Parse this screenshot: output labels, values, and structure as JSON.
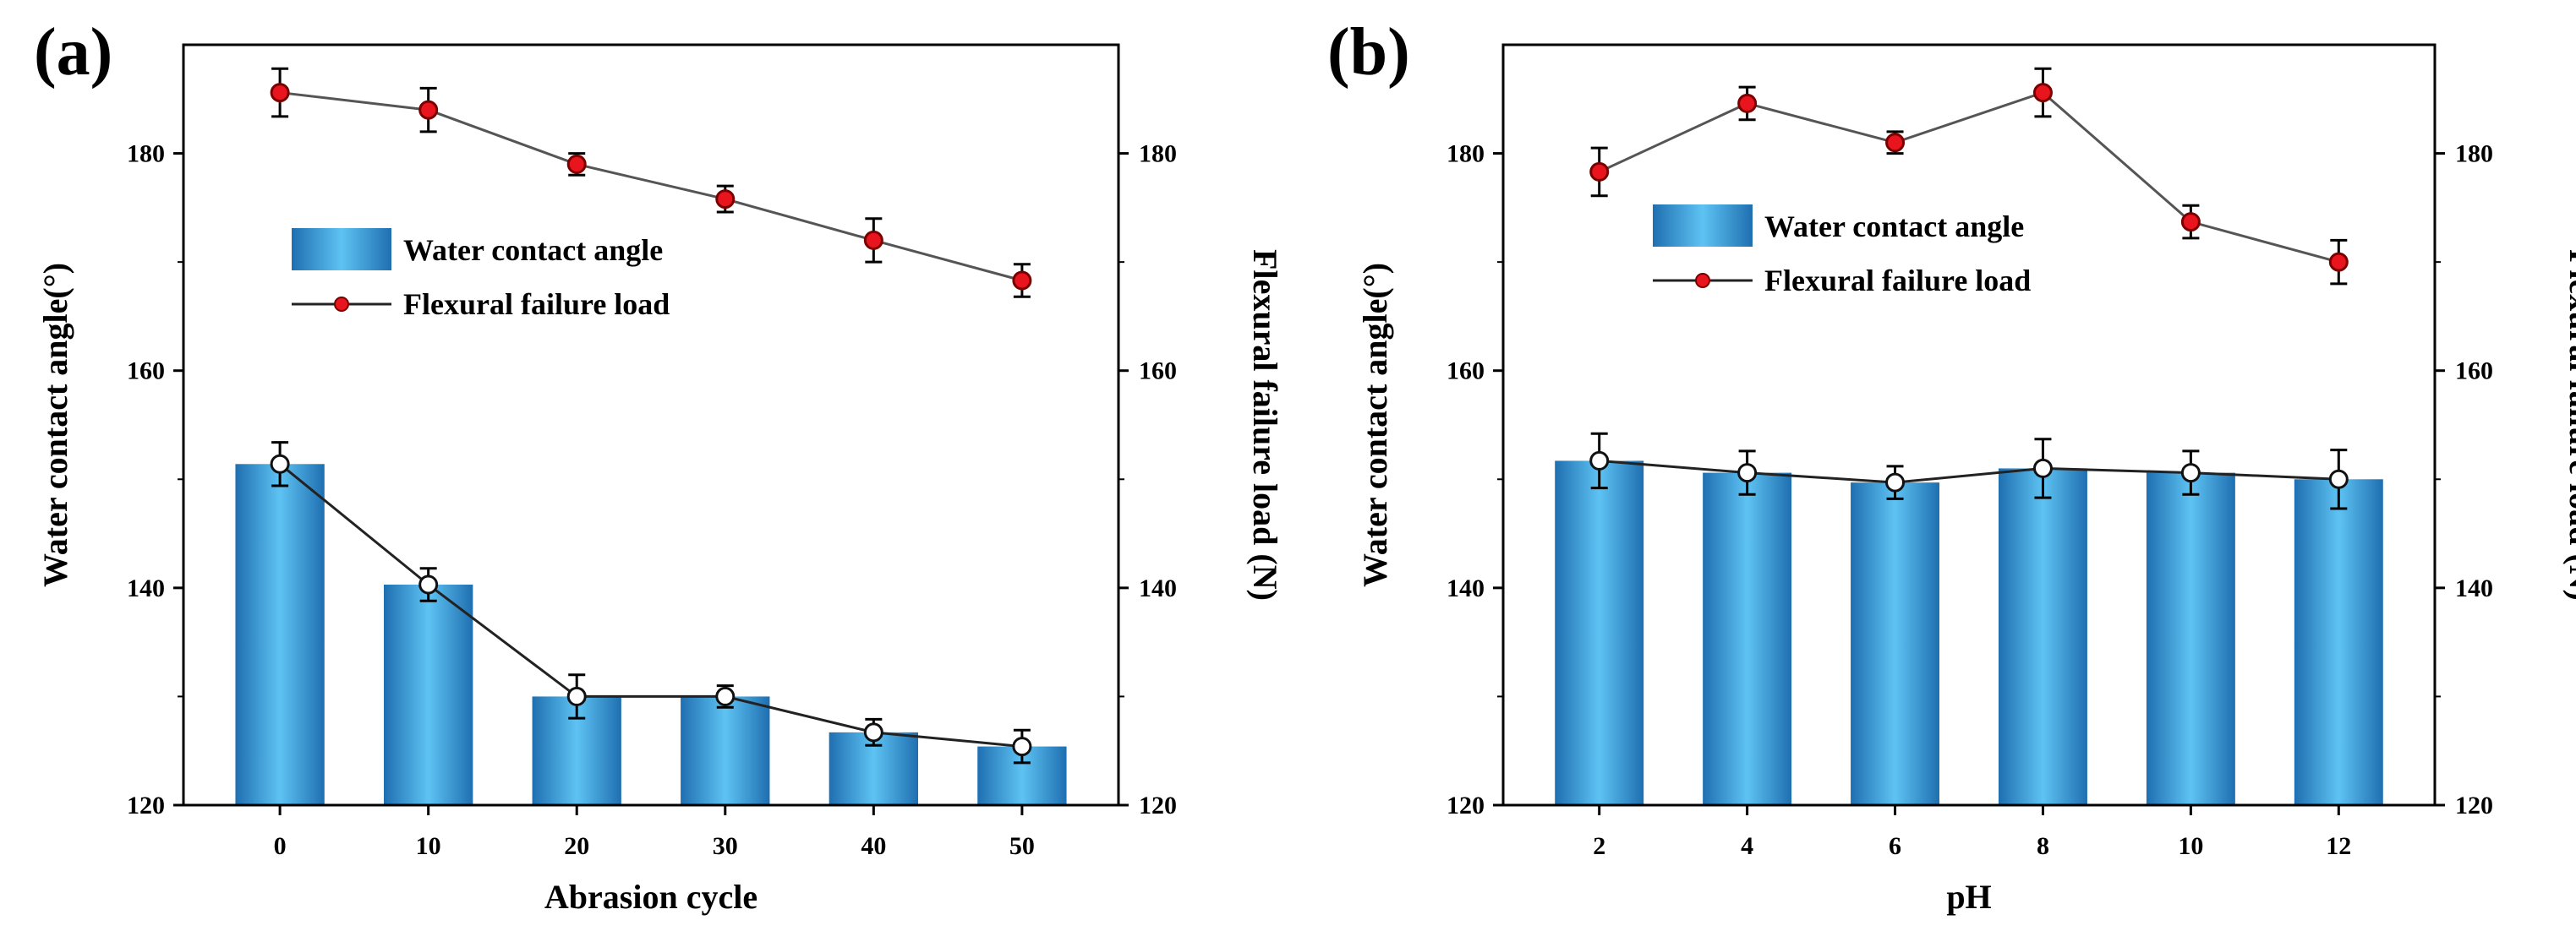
{
  "colors": {
    "bar_dark": "#1f6fb0",
    "bar_light": "#5ec3f3",
    "line": "#555555",
    "marker_red": "#e8141e",
    "marker_black": "#111111"
  },
  "chart_data": [
    {
      "type": "bar",
      "panel_label": "(a)",
      "categories": [
        "0",
        "10",
        "20",
        "30",
        "40",
        "50"
      ],
      "xlabel": "Abrasion cycle",
      "ylabel": "Water contact angle(°)",
      "ylabel_right": "Flexural failure load (N)",
      "ylim": [
        120,
        190
      ],
      "yticks": [
        "120",
        "140",
        "160",
        "180"
      ],
      "ylim_right": [
        120,
        190
      ],
      "yticks_right": [
        "120",
        "140",
        "160",
        "180"
      ],
      "series": [
        {
          "name": "Water contact angle",
          "kind": "bar",
          "axis": "left",
          "values": [
            151.4,
            140.3,
            130.0,
            130.0,
            126.7,
            125.4
          ]
        },
        {
          "name": "Water contact angle",
          "kind": "line",
          "axis": "left",
          "marker": "black",
          "values": [
            151.4,
            140.3,
            130.0,
            130.0,
            126.7,
            125.4
          ],
          "errors": [
            2.0,
            1.5,
            2.0,
            1.0,
            1.2,
            1.5
          ]
        },
        {
          "name": "Flexural failure load",
          "kind": "line",
          "axis": "right",
          "marker": "red",
          "values": [
            185.6,
            184.0,
            179.0,
            175.8,
            172.0,
            168.3
          ],
          "errors": [
            2.2,
            2.0,
            1.0,
            1.2,
            2.0,
            1.5
          ]
        }
      ],
      "legend": [
        "Water contact angle",
        "Flexural failure load"
      ]
    },
    {
      "type": "bar",
      "panel_label": "(b)",
      "categories": [
        "2",
        "4",
        "6",
        "8",
        "10",
        "12"
      ],
      "xlabel": "pH",
      "ylabel": "Water contact angle(°)",
      "ylabel_right": "Flexural failure load (N)",
      "ylim": [
        120,
        190
      ],
      "yticks": [
        "120",
        "140",
        "160",
        "180"
      ],
      "ylim_right": [
        120,
        190
      ],
      "yticks_right": [
        "120",
        "140",
        "160",
        "180"
      ],
      "series": [
        {
          "name": "Water contact angle",
          "kind": "bar",
          "axis": "left",
          "values": [
            151.7,
            150.6,
            149.7,
            151.0,
            150.6,
            150.0
          ]
        },
        {
          "name": "Water contact angle",
          "kind": "line",
          "axis": "left",
          "marker": "black",
          "values": [
            151.7,
            150.6,
            149.7,
            151.0,
            150.6,
            150.0
          ],
          "errors": [
            2.5,
            2.0,
            1.5,
            2.7,
            2.0,
            2.7
          ]
        },
        {
          "name": "Flexural failure load",
          "kind": "line",
          "axis": "right",
          "marker": "red",
          "values": [
            178.3,
            184.6,
            181.0,
            185.6,
            173.7,
            170.0
          ],
          "errors": [
            2.2,
            1.5,
            1.0,
            2.2,
            1.5,
            2.0
          ]
        }
      ],
      "legend": [
        "Water contact angle",
        "Flexural failure load"
      ]
    }
  ]
}
